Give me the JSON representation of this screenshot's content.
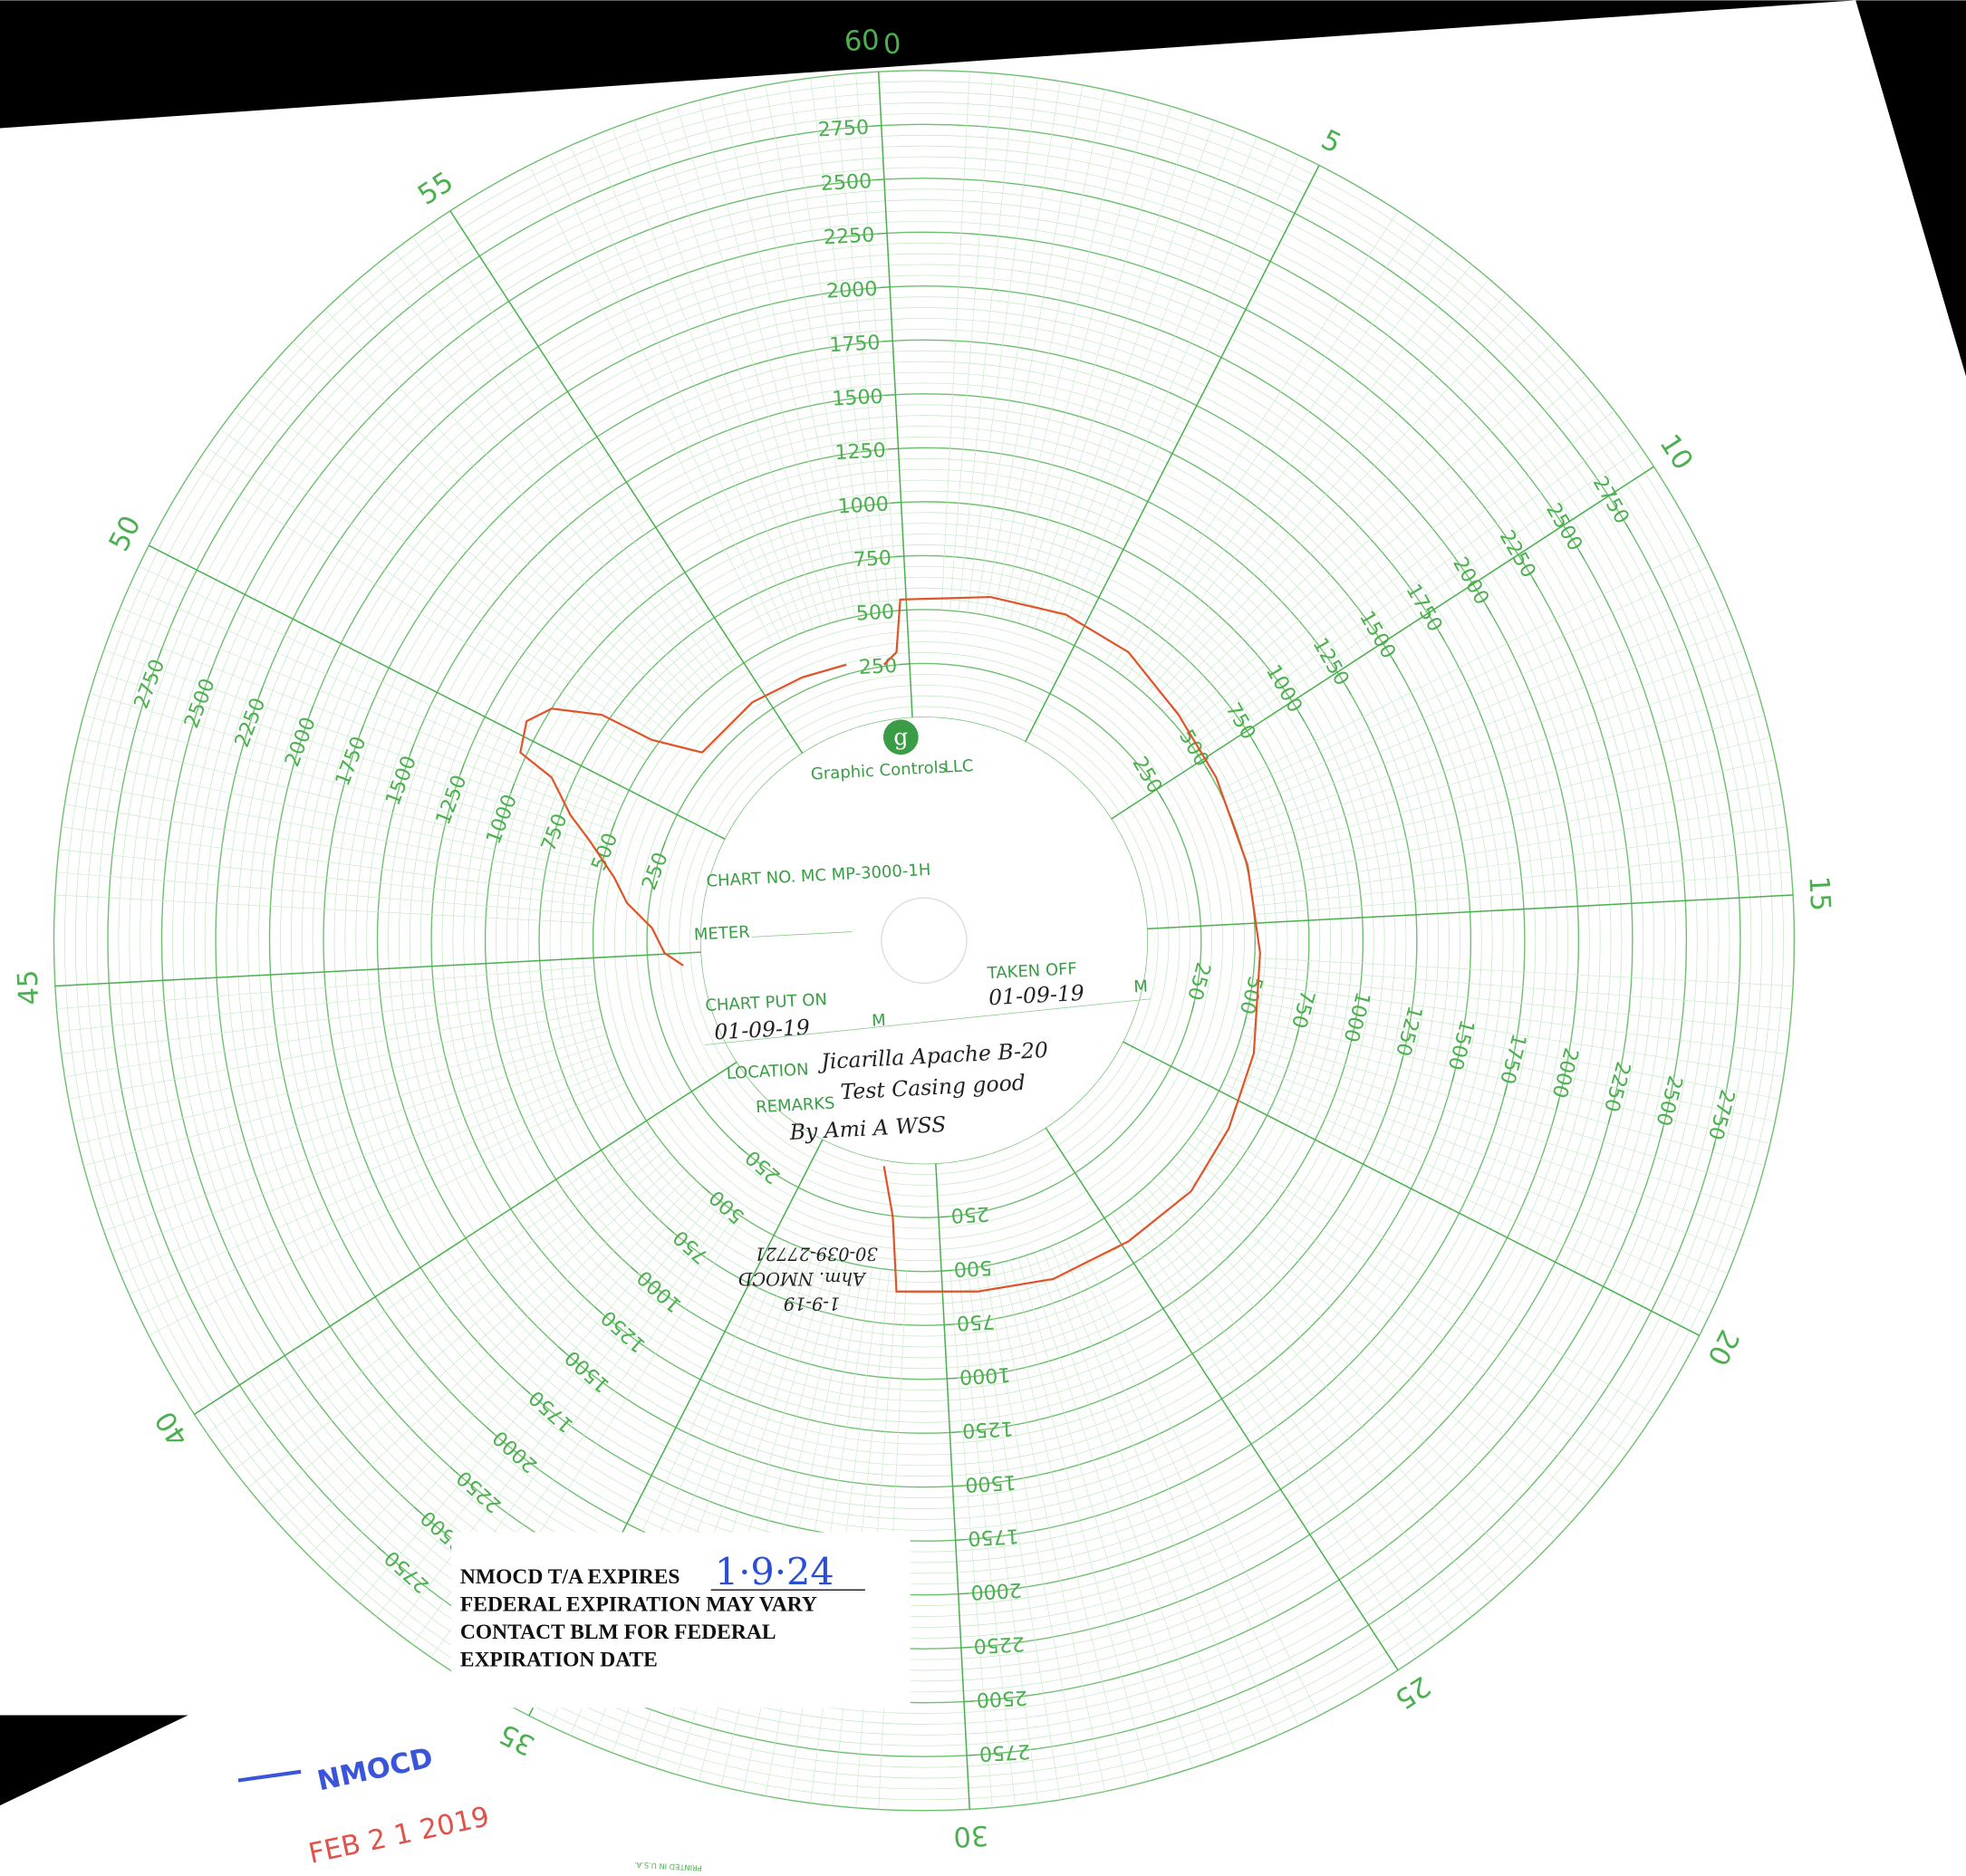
{
  "top_label": "60",
  "minute_labels": [
    "0",
    "5",
    "10",
    "15",
    "20",
    "25",
    "30",
    "35",
    "40",
    "45",
    "50",
    "55"
  ],
  "pressure_labels": [
    "250",
    "500",
    "750",
    "1000",
    "1250",
    "1500",
    "1750",
    "2000",
    "2250",
    "2500",
    "2750"
  ],
  "logo": {
    "letter": "g",
    "text": "Graphic Controls",
    "suffix": "LLC"
  },
  "form": {
    "chart_no": "CHART NO.  MC  MP-3000-1H",
    "meter": "METER",
    "put_on": "CHART PUT ON",
    "put_on_date": "01-09-19",
    "m": "M",
    "taken_off": "TAKEN OFF",
    "taken_off_date": "01-09-19",
    "location": "LOCATION",
    "location_value": "Jicarilla Apache B-20",
    "remarks": "REMARKS",
    "remarks_value": "Test Casing good",
    "by": "By Ami A WSS"
  },
  "note": [
    "1-9-19",
    "Ahm. NMOCD",
    "30-039-27721"
  ],
  "expiry": {
    "label": "NMOCD T/A EXPIRES",
    "date": "1·9·24",
    "lines": [
      "FEDERAL EXPIRATION MAY VARY",
      "CONTACT BLM FOR FEDERAL",
      "EXPIRATION DATE"
    ]
  },
  "stamp": {
    "agency": "NMOCD",
    "date": "FEB 2 1 2019"
  },
  "printed": "PRINTED IN U.S.A."
}
